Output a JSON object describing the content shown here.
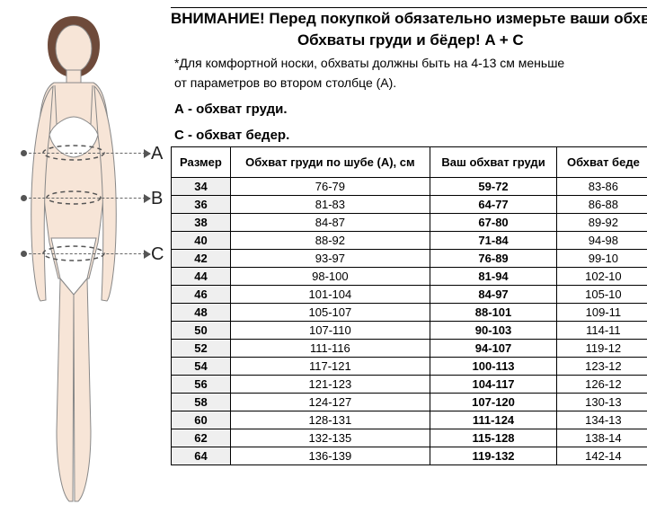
{
  "title_line": "ВНИМАНИЕ! Перед покупкой обязательно измерьте ваши обхв",
  "subtitle_line": "Обхваты груди и бёдер! A + C",
  "note_line1": "*Для комфортной носки, обхваты должны быть на 4-13 см меньше",
  "note_line2": "от параметров во втором столбце (А).",
  "label_a": "А - обхват груди.",
  "label_c": "С - обхват бедер.",
  "measure_a": "A",
  "measure_b": "B",
  "measure_c": "C",
  "table": {
    "headers": [
      "Размер",
      "Обхват груди по шубе (А), см",
      "Ваш обхват груди",
      "Обхват беде"
    ],
    "rows": [
      [
        "34",
        "76-79",
        "59-72",
        "83-86"
      ],
      [
        "36",
        "81-83",
        "64-77",
        "86-88"
      ],
      [
        "38",
        "84-87",
        "67-80",
        "89-92"
      ],
      [
        "40",
        "88-92",
        "71-84",
        "94-98"
      ],
      [
        "42",
        "93-97",
        "76-89",
        "99-10"
      ],
      [
        "44",
        "98-100",
        "81-94",
        "102-10"
      ],
      [
        "46",
        "101-104",
        "84-97",
        "105-10"
      ],
      [
        "48",
        "105-107",
        "88-101",
        "109-11"
      ],
      [
        "50",
        "107-110",
        "90-103",
        "114-11"
      ],
      [
        "52",
        "111-116",
        "94-107",
        "119-12"
      ],
      [
        "54",
        "117-121",
        "100-113",
        "123-12"
      ],
      [
        "56",
        "121-123",
        "104-117",
        "126-12"
      ],
      [
        "58",
        "124-127",
        "107-120",
        "130-13"
      ],
      [
        "60",
        "128-131",
        "111-124",
        "134-13"
      ],
      [
        "62",
        "132-135",
        "115-128",
        "138-14"
      ],
      [
        "64",
        "136-139",
        "119-132",
        "142-14"
      ]
    ]
  },
  "colors": {
    "ink": "#000000",
    "bg": "#ffffff",
    "zebra": "#efefef",
    "dash": "#666666"
  }
}
